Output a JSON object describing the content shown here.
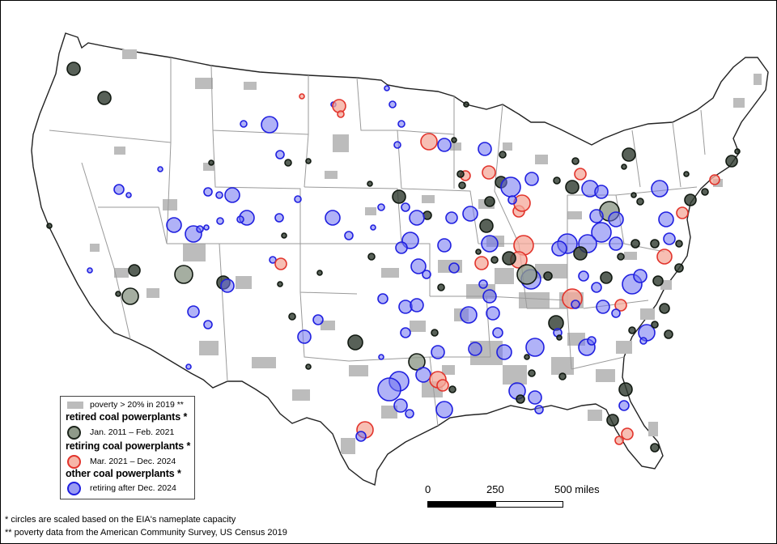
{
  "legend": {
    "poverty_label": "poverty > 20% in 2019 **",
    "retired_heading": "retired coal powerplants *",
    "retired_range": "Jan. 2011 – Feb. 2021",
    "retiring_heading": "retiring coal powerplants *",
    "retiring_range": "Mar. 2021 – Dec. 2024",
    "other_heading": "other coal powerplants *",
    "other_range": "retiring after Dec. 2024"
  },
  "scale": {
    "labels": [
      "0",
      "250",
      "500 miles"
    ]
  },
  "footnotes": {
    "capacity": "* circles are scaled based on the EIA's nameplate capacity",
    "poverty": "** poverty data from the American Community Survey, US Census 2019"
  },
  "colors": {
    "poverty_fill": "#bcbcbc",
    "retired_fill": "#2e3a2e",
    "retired_fill_light": "#8f9a8a",
    "retiring_stroke": "#e2332b",
    "retiring_fill": "#f4a89a",
    "other_stroke": "#1f1fe0",
    "other_fill": "#6f72f0",
    "state_border": "#9a9a9a",
    "nation_border": "#222222"
  }
}
